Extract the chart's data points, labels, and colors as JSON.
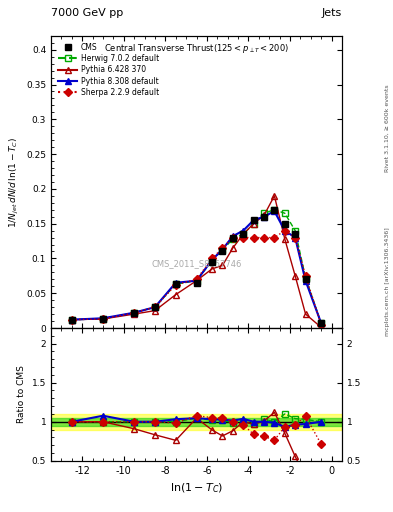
{
  "title_top": "7000 GeV pp",
  "title_top_right": "Jets",
  "title_main": "Central Transverse Thrust(125 < p_{#jetT} < 200)",
  "xlabel": "ln(1-T_C)",
  "ylabel_main": "1/N_{jet} dN/d_ln(1-T_C)",
  "ylabel_ratio": "Ratio to CMS",
  "watermark": "CMS_2011_S8957746",
  "right_label_top": "Rivet 3.1.10, ≥ 600k events",
  "right_label_bottom": "mcplots.cern.ch [arXiv:1306.3436]",
  "x_cms": [
    -12.5,
    -11.0,
    -9.5,
    -8.5,
    -7.5,
    -6.5,
    -5.75,
    -5.25,
    -4.75,
    -4.25,
    -3.75,
    -3.25,
    -2.75,
    -2.25,
    -1.75,
    -1.25,
    -0.5
  ],
  "y_cms": [
    0.012,
    0.013,
    0.022,
    0.03,
    0.063,
    0.065,
    0.095,
    0.11,
    0.13,
    0.135,
    0.155,
    0.16,
    0.17,
    0.15,
    0.135,
    0.07,
    0.007
  ],
  "x_herwig": [
    -12.5,
    -11.0,
    -9.5,
    -8.5,
    -7.5,
    -6.5,
    -5.75,
    -5.25,
    -4.75,
    -4.25,
    -3.75,
    -3.25,
    -2.75,
    -2.25,
    -1.75,
    -1.25,
    -0.5
  ],
  "y_herwig": [
    0.012,
    0.013,
    0.022,
    0.03,
    0.063,
    0.068,
    0.097,
    0.112,
    0.128,
    0.135,
    0.15,
    0.165,
    0.17,
    0.165,
    0.14,
    0.072,
    0.007
  ],
  "x_pythia6": [
    -12.5,
    -11.0,
    -9.5,
    -8.5,
    -7.5,
    -6.5,
    -5.75,
    -5.25,
    -4.75,
    -4.25,
    -3.75,
    -3.25,
    -2.75,
    -2.25,
    -1.75,
    -1.25,
    -0.5
  ],
  "y_pythia6": [
    0.012,
    0.013,
    0.02,
    0.025,
    0.048,
    0.068,
    0.085,
    0.09,
    0.115,
    0.135,
    0.15,
    0.162,
    0.19,
    0.128,
    0.075,
    0.02,
    0.001
  ],
  "x_pythia8": [
    -12.5,
    -11.0,
    -9.5,
    -8.5,
    -7.5,
    -6.5,
    -5.75,
    -5.25,
    -4.75,
    -4.25,
    -3.75,
    -3.25,
    -2.75,
    -2.25,
    -1.75,
    -1.25,
    -0.5
  ],
  "y_pythia8": [
    0.012,
    0.014,
    0.022,
    0.03,
    0.065,
    0.068,
    0.098,
    0.113,
    0.132,
    0.14,
    0.155,
    0.16,
    0.168,
    0.14,
    0.13,
    0.068,
    0.007
  ],
  "x_sherpa": [
    -12.5,
    -11.0,
    -9.5,
    -8.5,
    -7.5,
    -6.5,
    -5.75,
    -5.25,
    -4.75,
    -4.25,
    -3.75,
    -3.25,
    -2.75,
    -2.25,
    -1.75,
    -1.25,
    -0.5
  ],
  "y_sherpa": [
    0.012,
    0.013,
    0.022,
    0.03,
    0.062,
    0.07,
    0.1,
    0.115,
    0.13,
    0.13,
    0.13,
    0.13,
    0.13,
    0.14,
    0.13,
    0.075,
    0.005
  ],
  "ratio_herwig": [
    1.0,
    1.0,
    1.0,
    1.0,
    1.0,
    1.046,
    1.02,
    1.02,
    0.985,
    1.0,
    0.968,
    1.03,
    1.0,
    1.1,
    1.04,
    1.03,
    1.0
  ],
  "ratio_pythia6": [
    1.0,
    1.0,
    0.91,
    0.833,
    0.762,
    1.046,
    0.895,
    0.818,
    0.885,
    1.0,
    0.968,
    1.01,
    1.12,
    0.853,
    0.556,
    0.286,
    0.14
  ],
  "ratio_pythia8": [
    1.0,
    1.077,
    1.0,
    1.0,
    1.032,
    1.046,
    1.032,
    1.027,
    1.015,
    1.037,
    1.0,
    1.0,
    0.988,
    0.933,
    0.963,
    0.971,
    1.0
  ],
  "ratio_sherpa": [
    1.0,
    1.0,
    1.0,
    1.0,
    0.984,
    1.077,
    1.053,
    1.045,
    1.0,
    0.963,
    0.839,
    0.813,
    0.765,
    0.933,
    0.963,
    1.071,
    0.714
  ],
  "color_cms": "#000000",
  "color_herwig": "#00aa00",
  "color_pythia6": "#aa0000",
  "color_pythia8": "#0000cc",
  "color_sherpa": "#cc0000",
  "xlim": [
    -13.5,
    0.5
  ],
  "ylim_main": [
    0.0,
    0.42
  ],
  "ylim_ratio": [
    0.5,
    2.2
  ],
  "xticks": [
    -12,
    -10,
    -8,
    -6,
    -4,
    -2,
    0
  ],
  "band_yellow": 0.1,
  "band_green": 0.05
}
